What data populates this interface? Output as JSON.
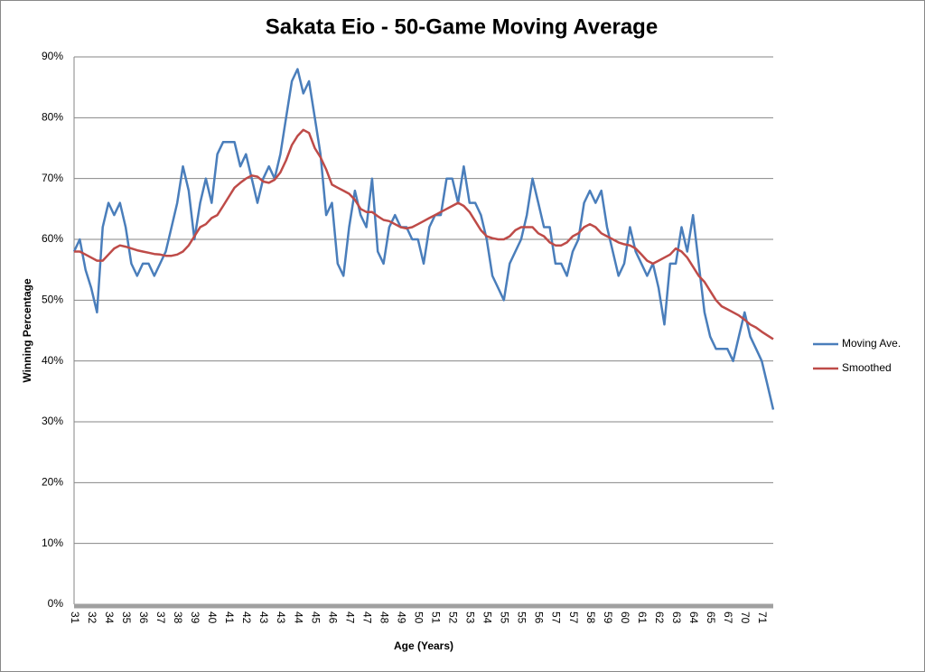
{
  "chart_data": {
    "type": "line",
    "title": "Sakata Eio - 50-Game Moving Average",
    "x_label": "Age (Years)",
    "y_label": "Winning Percentage",
    "categories": [
      "31",
      null,
      null,
      "32",
      null,
      null,
      "34",
      null,
      null,
      "35",
      null,
      null,
      "36",
      null,
      null,
      "37",
      null,
      null,
      "38",
      null,
      null,
      "39",
      null,
      null,
      "40",
      null,
      null,
      "41",
      null,
      null,
      "42",
      null,
      null,
      "43",
      null,
      null,
      "43",
      null,
      null,
      "44",
      null,
      null,
      "45",
      null,
      null,
      "46",
      null,
      null,
      "47",
      null,
      null,
      "47",
      null,
      null,
      "48",
      null,
      null,
      "49",
      null,
      null,
      "50",
      null,
      null,
      "51",
      null,
      null,
      "52",
      null,
      null,
      "53",
      null,
      null,
      "54",
      null,
      null,
      "55",
      null,
      null,
      "55",
      null,
      null,
      "56",
      null,
      null,
      "57",
      null,
      null,
      "57",
      null,
      null,
      "58",
      null,
      null,
      "59",
      null,
      null,
      "60",
      null,
      null,
      "61",
      null,
      null,
      "62",
      null,
      null,
      "63",
      null,
      null,
      "64",
      null,
      null,
      "65",
      null,
      null,
      "67",
      null,
      null,
      "70",
      null,
      null,
      "71",
      null,
      null
    ],
    "series": [
      {
        "name": "Moving Ave.",
        "color": "#4a7ebb",
        "values": [
          58,
          60,
          55,
          52,
          48,
          62,
          66,
          64,
          66,
          62,
          56,
          54,
          56,
          56,
          54,
          56,
          58,
          62,
          66,
          72,
          68,
          60,
          66,
          70,
          66,
          74,
          76,
          76,
          76,
          72,
          74,
          70,
          66,
          70,
          72,
          70,
          74,
          80,
          86,
          88,
          84,
          86,
          80,
          74,
          64,
          66,
          56,
          54,
          62,
          68,
          64,
          62,
          70,
          58,
          56,
          62,
          64,
          62,
          62,
          60,
          60,
          56,
          62,
          64,
          64,
          70,
          70,
          66,
          72,
          66,
          66,
          64,
          60,
          54,
          52,
          50,
          56,
          58,
          60,
          64,
          70,
          66,
          62,
          62,
          56,
          56,
          54,
          58,
          60,
          66,
          68,
          66,
          68,
          62,
          58,
          54,
          56,
          62,
          58,
          56,
          54,
          56,
          52,
          46,
          56,
          56,
          62,
          58,
          64,
          56,
          48,
          44,
          42,
          42,
          42,
          40,
          44,
          48,
          44,
          42,
          40,
          36,
          32
        ]
      },
      {
        "name": "Smoothed",
        "color": "#be4b48",
        "values": [
          58,
          58,
          57.5,
          57,
          56.5,
          56.5,
          57.5,
          58.5,
          59,
          58.8,
          58.5,
          58.2,
          58,
          57.8,
          57.6,
          57.5,
          57.3,
          57.3,
          57.5,
          58,
          59,
          60.5,
          62,
          62.5,
          63.5,
          64,
          65.5,
          67,
          68.5,
          69.3,
          70,
          70.5,
          70.3,
          69.5,
          69.3,
          69.8,
          71,
          73,
          75.5,
          77,
          78,
          77.5,
          75,
          73.5,
          71.5,
          69,
          68.5,
          68,
          67.5,
          66.5,
          65,
          64.5,
          64.5,
          63.8,
          63.2,
          63,
          62.5,
          62,
          61.8,
          62,
          62.5,
          63,
          63.5,
          64,
          64.5,
          65,
          65.5,
          66,
          65.5,
          64.5,
          63,
          61.5,
          60.5,
          60.2,
          60,
          60,
          60.5,
          61.5,
          62,
          62,
          62,
          61,
          60.5,
          59.5,
          59,
          59,
          59.5,
          60.5,
          61,
          62,
          62.5,
          62,
          61,
          60.5,
          60,
          59.5,
          59.2,
          59,
          58.5,
          57.5,
          56.5,
          56,
          56.5,
          57,
          57.5,
          58.5,
          58,
          57,
          55.5,
          54,
          53,
          51.5,
          50,
          49,
          48.5,
          48,
          47.5,
          46.8,
          46,
          45.5,
          44.8,
          44.2,
          43.6
        ]
      }
    ],
    "ylim": [
      0,
      90
    ],
    "yticks": [
      {
        "value": 0,
        "label": "0%"
      },
      {
        "value": 10,
        "label": "10%"
      },
      {
        "value": 20,
        "label": "20%"
      },
      {
        "value": 30,
        "label": "30%"
      },
      {
        "value": 40,
        "label": "40%"
      },
      {
        "value": 50,
        "label": "50%"
      },
      {
        "value": 60,
        "label": "60%"
      },
      {
        "value": 70,
        "label": "70%"
      },
      {
        "value": 80,
        "label": "80%"
      },
      {
        "value": 90,
        "label": "90%"
      }
    ],
    "grid": true,
    "legend": "right"
  }
}
